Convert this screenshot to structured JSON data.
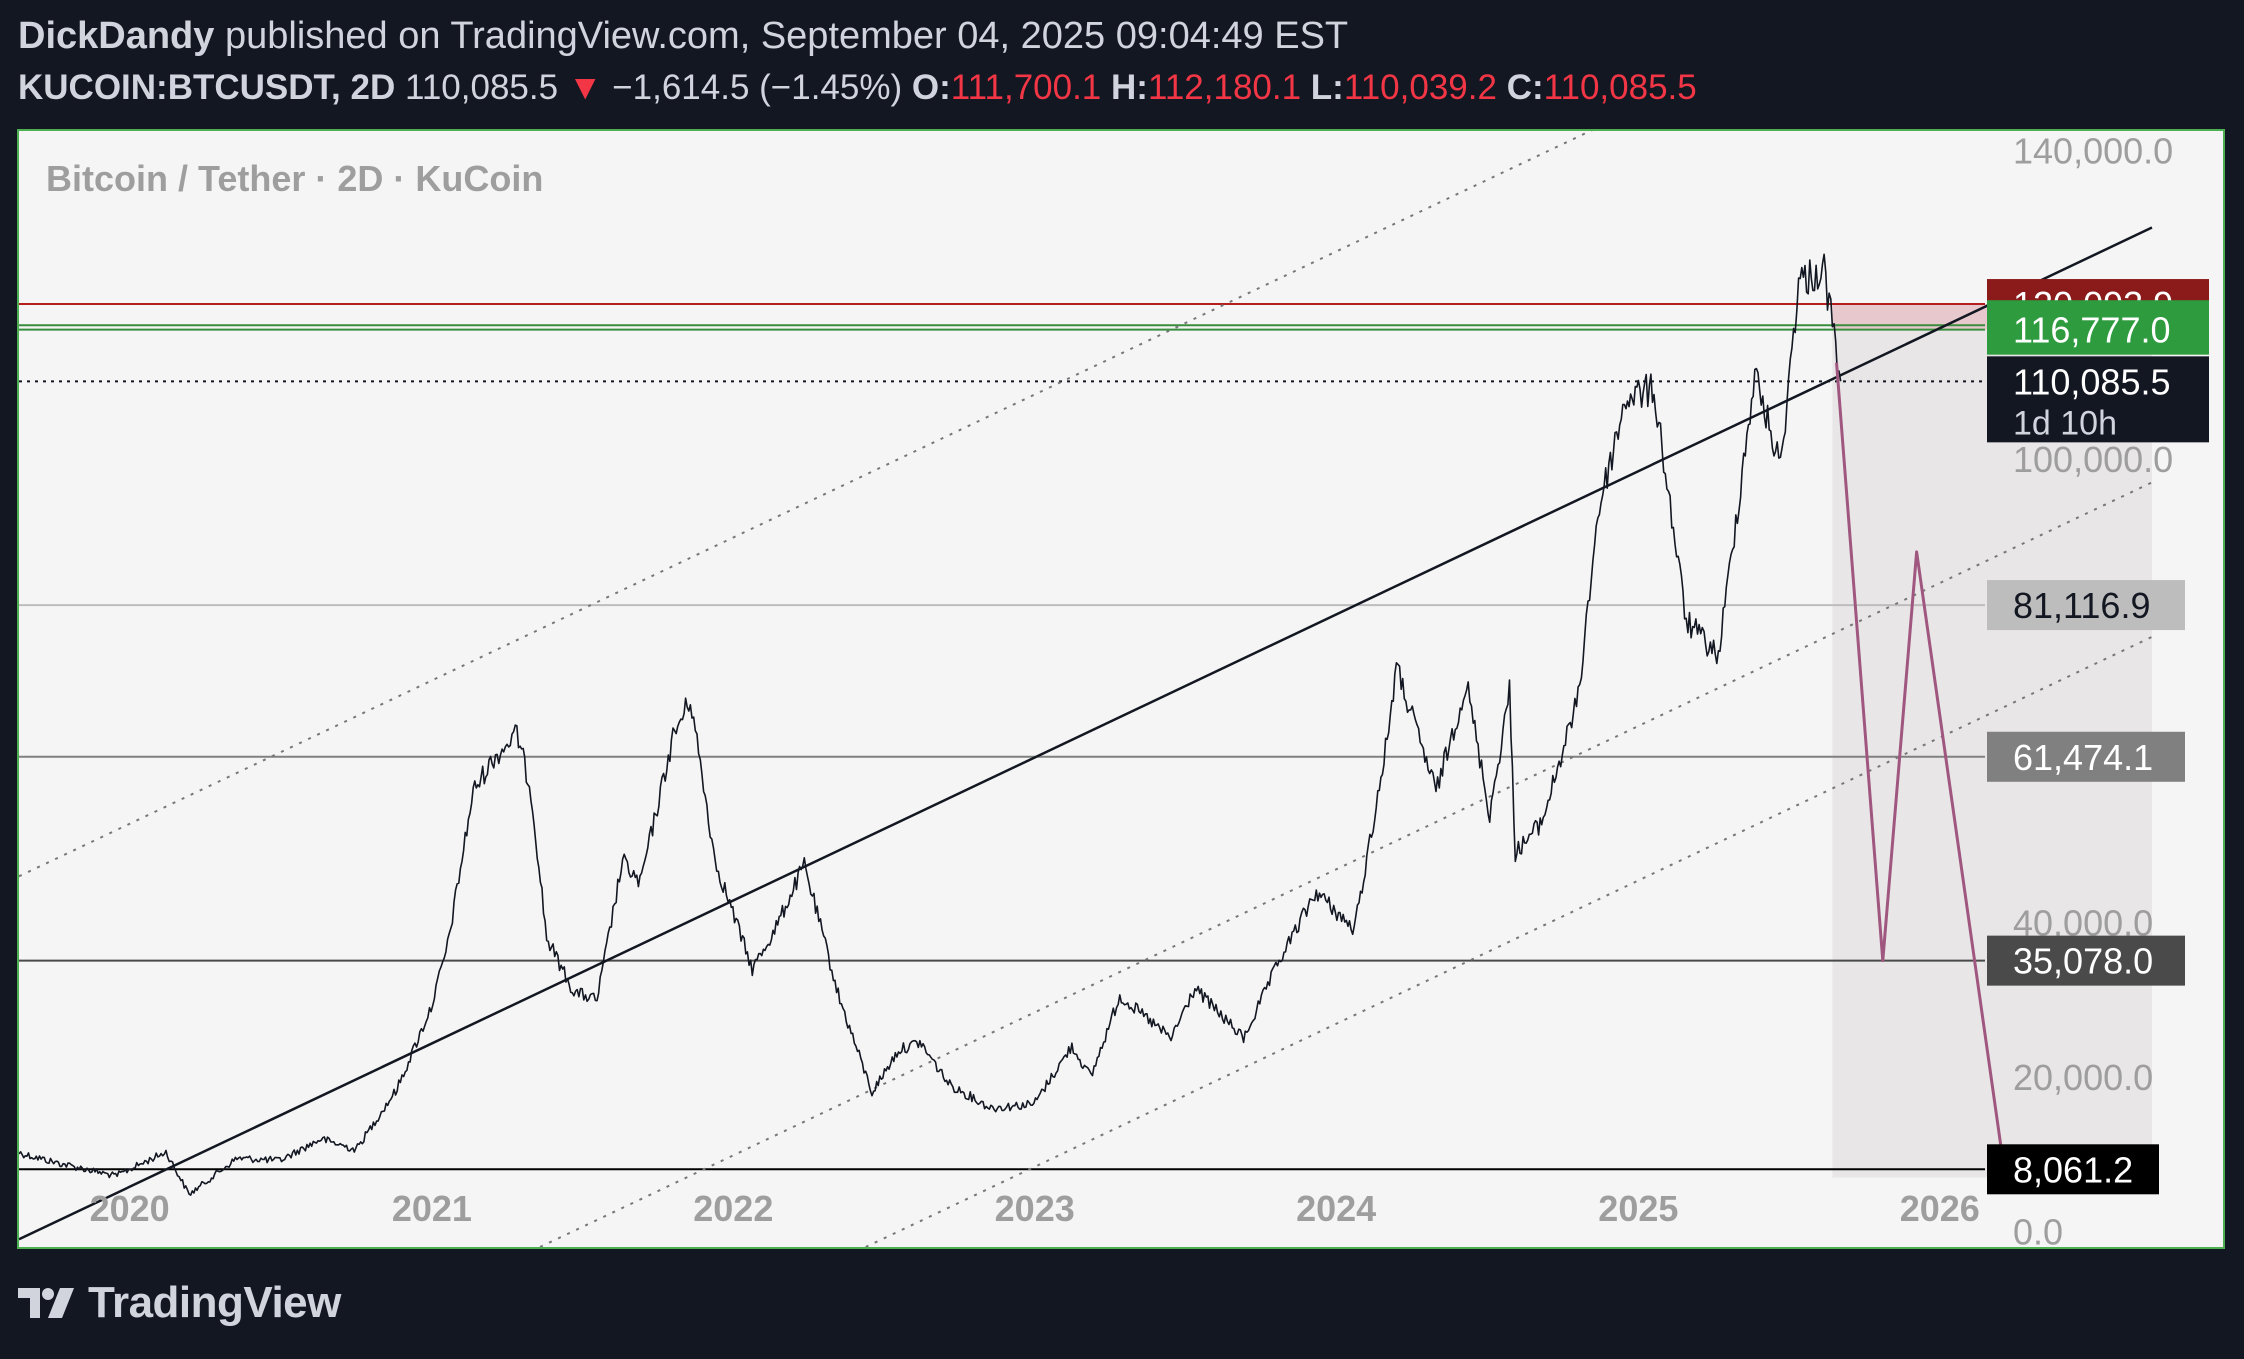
{
  "header": {
    "author": "DickDandy",
    "published_text": "published on TradingView.com, September 04, 2025 09:04:49 EST",
    "symbol": "KUCOIN:BTCUSDT, 2D",
    "last_price": "110,085.5",
    "change_arrow": "▼",
    "change_text": "−1,614.5 (−1.45%)",
    "open_label": "O:",
    "open_value": "111,700.1",
    "high_label": "H:",
    "high_value": "112,180.1",
    "low_label": "L:",
    "low_value": "110,039.2",
    "close_label": "C:",
    "close_value": "110,085.5"
  },
  "chart_data": {
    "type": "line",
    "title": "Bitcoin / Tether · 2D · KuCoin",
    "x_tick_labels": [
      "2020",
      "2021",
      "2022",
      "2023",
      "2024",
      "2025",
      "2026"
    ],
    "y_tick_labels": [
      "140,000.0",
      "100,000.0",
      "40,000.0",
      "20,000.0",
      "0.0"
    ],
    "y_tick_values": [
      140000,
      100000,
      40000,
      20000,
      0
    ],
    "ylim": [
      -2000,
      142500
    ],
    "xlim": [
      "2019-08-20",
      "2026-12-10"
    ],
    "grid": false,
    "series": [
      {
        "color": "#131722",
        "points": [
          [
            "2019-08-20",
            10200
          ],
          [
            "2019-10-01",
            9000
          ],
          [
            "2019-12-15",
            7200
          ],
          [
            "2020-02-14",
            10300
          ],
          [
            "2020-03-13",
            4800
          ],
          [
            "2020-05-10",
            9500
          ],
          [
            "2020-07-01",
            9200
          ],
          [
            "2020-08-20",
            12000
          ],
          [
            "2020-10-01",
            10600
          ],
          [
            "2020-11-20",
            18500
          ],
          [
            "2020-12-31",
            29000
          ],
          [
            "2021-01-20",
            37000
          ],
          [
            "2021-02-20",
            57000
          ],
          [
            "2021-03-15",
            61000
          ],
          [
            "2021-04-14",
            64500
          ],
          [
            "2021-05-01",
            57000
          ],
          [
            "2021-05-20",
            38000
          ],
          [
            "2021-06-22",
            31000
          ],
          [
            "2021-07-20",
            30000
          ],
          [
            "2021-08-20",
            48000
          ],
          [
            "2021-09-10",
            45000
          ],
          [
            "2021-10-20",
            64000
          ],
          [
            "2021-11-10",
            69000
          ],
          [
            "2021-12-10",
            48000
          ],
          [
            "2022-01-24",
            34000
          ],
          [
            "2022-02-20",
            39000
          ],
          [
            "2022-03-28",
            47500
          ],
          [
            "2022-05-10",
            30000
          ],
          [
            "2022-06-18",
            18000
          ],
          [
            "2022-07-20",
            23500
          ],
          [
            "2022-08-15",
            24500
          ],
          [
            "2022-09-20",
            19000
          ],
          [
            "2022-11-09",
            16000
          ],
          [
            "2022-12-31",
            16500
          ],
          [
            "2023-02-15",
            24000
          ],
          [
            "2023-03-10",
            20000
          ],
          [
            "2023-04-14",
            30500
          ],
          [
            "2023-06-15",
            25000
          ],
          [
            "2023-07-14",
            31500
          ],
          [
            "2023-09-11",
            25000
          ],
          [
            "2023-10-24",
            35000
          ],
          [
            "2023-12-08",
            44000
          ],
          [
            "2024-01-23",
            39000
          ],
          [
            "2024-02-28",
            61000
          ],
          [
            "2024-03-14",
            73000
          ],
          [
            "2024-05-01",
            57000
          ],
          [
            "2024-06-07",
            71000
          ],
          [
            "2024-07-05",
            54000
          ],
          [
            "2024-07-29",
            70000
          ],
          [
            "2024-08-05",
            49000
          ],
          [
            "2024-09-06",
            53000
          ],
          [
            "2024-10-20",
            69000
          ],
          [
            "2024-11-13",
            93000
          ],
          [
            "2024-12-17",
            108000
          ],
          [
            "2025-01-20",
            109000
          ],
          [
            "2025-02-28",
            79000
          ],
          [
            "2025-04-08",
            74500
          ],
          [
            "2025-05-22",
            111000
          ],
          [
            "2025-06-22",
            99000
          ],
          [
            "2025-07-14",
            123000
          ],
          [
            "2025-08-14",
            124500
          ],
          [
            "2025-09-03",
            110085
          ]
        ]
      }
    ],
    "price_levels": [
      {
        "value": 120093.9,
        "label": "120,093.9",
        "line_color": "#b71c1c",
        "label_bg": "#8b1a1a",
        "label_color": "#ffffff"
      },
      {
        "value": 117354.5,
        "label": "117,354.5",
        "line_color": "#388e3c",
        "label_bg": "#2e9b3e",
        "label_color": "#ffffff"
      },
      {
        "value": 116777.0,
        "label": "116,777.0",
        "line_color": "#388e3c",
        "label_bg": "#2e9b3e",
        "label_color": "#ffffff"
      },
      {
        "value": 110085.5,
        "label": "110,085.5",
        "countdown": "1d 10h",
        "line_color": "#131722",
        "label_bg": "#131722",
        "label_color": "#ffffff",
        "dotted": true
      },
      {
        "value": 81116.9,
        "label": "81,116.9",
        "line_color": "#bdbdbd",
        "label_bg": "#bdbdbd",
        "label_color": "#131722"
      },
      {
        "value": 61474.1,
        "label": "61,474.1",
        "line_color": "#808080",
        "label_bg": "#808080",
        "label_color": "#ffffff"
      },
      {
        "value": 35078.0,
        "label": "35,078.0",
        "line_color": "#4a4a4a",
        "label_bg": "#4a4a4a",
        "label_color": "#ffffff"
      },
      {
        "value": 8061.2,
        "label": "8,061.2",
        "line_color": "#000000",
        "label_bg": "#000000",
        "label_color": "#ffffff"
      }
    ],
    "trend_channel": {
      "main": [
        [
          "2019-08-20",
          -1000
        ],
        [
          "2026-09-15",
          130000
        ]
      ],
      "parallel_offsets": [
        47000,
        -33000,
        -53000
      ]
    },
    "projection": {
      "color": "#a0577f",
      "points": [
        [
          "2025-08-29",
          112500
        ],
        [
          "2025-10-24",
          35078
        ],
        [
          "2025-12-04",
          88000
        ],
        [
          "2026-03-20",
          8061.2
        ]
      ]
    },
    "shaded_zones": [
      {
        "x_from": "2025-08-24",
        "x_to": "2026-09-15",
        "y_from": 7000,
        "y_to": 120093.9,
        "color": "#e8e6e7"
      },
      {
        "x_from": "2025-08-24",
        "x_to": "2026-09-15",
        "y_from": 116777.0,
        "y_to": 120093.9,
        "color": "#e7c9cd"
      }
    ],
    "colors": {
      "background": "#f5f5f5",
      "frame": "#4caf50",
      "axis_text": "#9e9e9e"
    }
  },
  "footer": {
    "brand": "TradingView",
    "logo_icon": "tradingview-logo-icon"
  }
}
